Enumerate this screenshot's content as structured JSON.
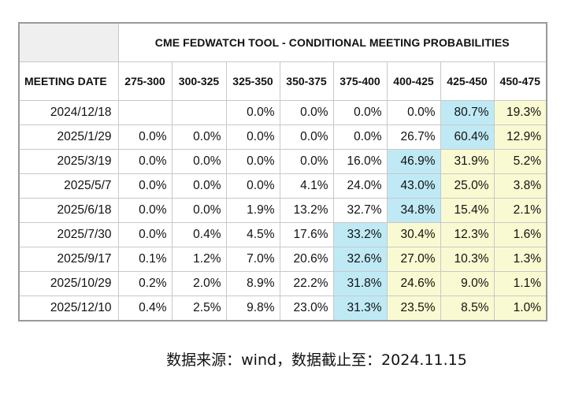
{
  "table": {
    "title": "CME FEDWATCH TOOL - CONDITIONAL MEETING PROBABILITIES",
    "date_header": "MEETING DATE",
    "ranges": [
      "275-300",
      "300-325",
      "325-350",
      "350-375",
      "375-400",
      "400-425",
      "425-450",
      "450-475"
    ],
    "rows": [
      {
        "date": "2024/12/18",
        "values": [
          "",
          "",
          "0.0%",
          "0.0%",
          "0.0%",
          "0.0%",
          "80.7%",
          "19.3%"
        ],
        "highlight": [
          "",
          "",
          "",
          "",
          "",
          "",
          "blue",
          "yellow"
        ]
      },
      {
        "date": "2025/1/29",
        "values": [
          "0.0%",
          "0.0%",
          "0.0%",
          "0.0%",
          "0.0%",
          "26.7%",
          "60.4%",
          "12.9%"
        ],
        "highlight": [
          "",
          "",
          "",
          "",
          "",
          "",
          "blue",
          "yellow"
        ]
      },
      {
        "date": "2025/3/19",
        "values": [
          "0.0%",
          "0.0%",
          "0.0%",
          "0.0%",
          "16.0%",
          "46.9%",
          "31.9%",
          "5.2%"
        ],
        "highlight": [
          "",
          "",
          "",
          "",
          "",
          "blue",
          "yellow",
          "yellow"
        ]
      },
      {
        "date": "2025/5/7",
        "values": [
          "0.0%",
          "0.0%",
          "0.0%",
          "4.1%",
          "24.0%",
          "43.0%",
          "25.0%",
          "3.8%"
        ],
        "highlight": [
          "",
          "",
          "",
          "",
          "",
          "blue",
          "yellow",
          "yellow"
        ]
      },
      {
        "date": "2025/6/18",
        "values": [
          "0.0%",
          "0.0%",
          "1.9%",
          "13.2%",
          "32.7%",
          "34.8%",
          "15.4%",
          "2.1%"
        ],
        "highlight": [
          "",
          "",
          "",
          "",
          "",
          "blue",
          "yellow",
          "yellow"
        ]
      },
      {
        "date": "2025/7/30",
        "values": [
          "0.0%",
          "0.4%",
          "4.5%",
          "17.6%",
          "33.2%",
          "30.4%",
          "12.3%",
          "1.6%"
        ],
        "highlight": [
          "",
          "",
          "",
          "",
          "blue",
          "yellow",
          "yellow",
          "yellow"
        ]
      },
      {
        "date": "2025/9/17",
        "values": [
          "0.1%",
          "1.2%",
          "7.0%",
          "20.6%",
          "32.6%",
          "27.0%",
          "10.3%",
          "1.3%"
        ],
        "highlight": [
          "",
          "",
          "",
          "",
          "blue",
          "yellow",
          "yellow",
          "yellow"
        ]
      },
      {
        "date": "2025/10/29",
        "values": [
          "0.2%",
          "2.0%",
          "8.9%",
          "22.2%",
          "31.8%",
          "24.6%",
          "9.0%",
          "1.1%"
        ],
        "highlight": [
          "",
          "",
          "",
          "",
          "blue",
          "yellow",
          "yellow",
          "yellow"
        ]
      },
      {
        "date": "2025/12/10",
        "values": [
          "0.4%",
          "2.5%",
          "9.8%",
          "23.0%",
          "31.3%",
          "23.5%",
          "8.5%",
          "1.0%"
        ],
        "highlight": [
          "",
          "",
          "",
          "",
          "blue",
          "yellow",
          "yellow",
          "yellow"
        ]
      }
    ]
  },
  "colors": {
    "highlight_blue": "#bfeaf5",
    "highlight_yellow": "#fafad2",
    "corner_gray": "#efefef"
  },
  "footer": {
    "source_note": "数据来源：wind，数据截止至：2024.11.15"
  }
}
